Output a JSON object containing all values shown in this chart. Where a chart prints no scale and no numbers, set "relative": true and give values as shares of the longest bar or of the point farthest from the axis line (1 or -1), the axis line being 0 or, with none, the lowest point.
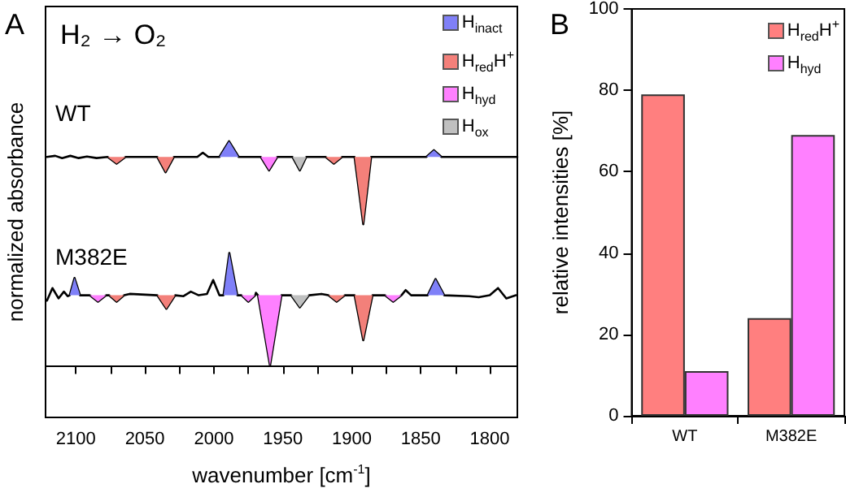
{
  "chart_data": [
    {
      "type": "line",
      "title": "H₂ → O₂",
      "xlabel": "wavenumber [cm$^{-1}$]",
      "ylabel": "normalized absorbance",
      "annotations": [
        "A"
      ],
      "relative": true,
      "tick_labels": "x",
      "legend": "top right",
      "marker": "none",
      "xlim": [
        2122,
        1780
      ],
      "xticks": [
        2100,
        {
          "value": 2075,
          "label": null
        },
        2050,
        {
          "value": 2025,
          "label": null
        },
        2000,
        {
          "value": 1975,
          "label": null
        },
        1950,
        {
          "value": 1925,
          "label": null
        },
        1900,
        {
          "value": 1875,
          "label": null
        },
        1850,
        {
          "value": 1825,
          "label": null
        },
        1800
      ],
      "series": [
        {
          "type": "area",
          "name": "H$_{inact}$",
          "color": "#8080f8",
          "x": [
            1996,
            1989,
            1982,
            1900,
            1846,
            1840.5,
            1835
          ],
          "values": [
            0.93,
            1.0,
            0.93,
            null,
            0.93,
            0.96,
            0.93
          ]
        },
        {
          "type": "area",
          "name": "H$_{red}$H$^{+}$",
          "color": "#f4807a",
          "x": [
            2077,
            2070.5,
            2064,
            2050,
            2041,
            2035,
            2029,
            1950,
            1919,
            1913,
            1907,
            1903,
            1898,
            1891.7,
            1886
          ],
          "values": [
            0.93,
            0.9,
            0.93,
            null,
            0.93,
            0.862,
            0.93,
            null,
            0.93,
            0.9,
            0.93,
            null,
            0.93,
            0.63,
            0.93
          ]
        },
        {
          "type": "area",
          "name": "H$_{hyd}$",
          "color": "#ff80ff",
          "x": [
            1966,
            1960,
            1954
          ],
          "values": [
            0.93,
            0.87,
            0.93
          ]
        },
        {
          "type": "area",
          "name": "H$_{ox}$",
          "color": "#c0c0c0",
          "x": [
            1943,
            1937.7,
            1933
          ],
          "values": [
            0.93,
            0.87,
            0.93
          ]
        },
        {
          "type": "area",
          "color": "#7f80f8",
          "x": [
            2104.5,
            2101,
            2097,
            2050,
            1993,
            1988.8,
            1983,
            1900,
            1845,
            1839.3,
            1833
          ],
          "values": [
            0.314,
            0.391,
            0.314,
            null,
            0.314,
            0.502,
            0.314,
            null,
            0.314,
            0.386,
            0.314
          ]
        },
        {
          "type": "area",
          "color": "#f3807a",
          "x": [
            2076,
            2070.5,
            2065,
            2050,
            2041,
            2034.4,
            2028,
            1950,
            1917,
            1911,
            1905,
            1903,
            1898,
            1891.7,
            1885
          ],
          "values": [
            0.314,
            0.285,
            0.314,
            null,
            0.314,
            0.254,
            0.314,
            null,
            0.314,
            0.285,
            0.314,
            null,
            0.314,
            0.114,
            0.314
          ]
        },
        {
          "type": "area",
          "color": "#fe80ff",
          "x": [
            2090,
            2084,
            2078,
            2030,
            1980,
            1975,
            1970,
            1969.5,
            1968,
            1959.3,
            1951,
            1900,
            1876,
            1870,
            1864
          ],
          "values": [
            0.314,
            0.285,
            0.314,
            null,
            0.314,
            0.285,
            0.314,
            null,
            0.314,
            0.0,
            0.314,
            null,
            0.314,
            0.285,
            0.314
          ]
        },
        {
          "type": "area",
          "color": "#bfc0c0",
          "x": [
            1944,
            1937.7,
            1931
          ],
          "values": [
            0.314,
            0.26,
            0.314
          ]
        },
        {
          "name": "WT",
          "color": "#000000",
          "x": [
            2121,
            2115,
            2110,
            2104,
            2098,
            2092,
            2085,
            2077,
            2070.5,
            2064,
            2041,
            2035,
            2029,
            2012,
            2008,
            2004,
            1996,
            1989,
            1982,
            1966,
            1960,
            1954,
            1943,
            1937.7,
            1933,
            1919,
            1913,
            1907,
            1898,
            1891.7,
            1886,
            1846,
            1840.5,
            1835,
            1780
          ],
          "values": [
            0.93,
            0.935,
            0.925,
            0.935,
            0.925,
            0.932,
            0.925,
            0.93,
            0.9,
            0.93,
            0.93,
            0.862,
            0.93,
            0.93,
            0.949,
            0.93,
            0.93,
            1.0,
            0.93,
            0.93,
            0.87,
            0.93,
            0.93,
            0.87,
            0.93,
            0.93,
            0.9,
            0.93,
            0.93,
            0.63,
            0.93,
            0.93,
            0.96,
            0.93,
            0.93
          ]
        },
        {
          "name": "M382E",
          "color": "#000000",
          "x": [
            2121,
            2117,
            2112.6,
            2108.7,
            2106,
            2104.5,
            2101,
            2097,
            2090,
            2084,
            2078,
            2076,
            2070.5,
            2065,
            2061,
            2041,
            2034.4,
            2028,
            2022,
            2016.7,
            2011,
            2005,
            2000.5,
            1996,
            1993,
            1988.8,
            1983,
            1980,
            1975,
            1970,
            1969.5,
            1968,
            1959.3,
            1951,
            1944,
            1937.7,
            1931,
            1922,
            1917,
            1911,
            1905,
            1898,
            1891.7,
            1885,
            1876,
            1870,
            1864,
            1861,
            1857,
            1845,
            1839.3,
            1833,
            1815,
            1808,
            1800,
            1794,
            1788,
            1781
          ],
          "values": [
            0.29,
            0.346,
            0.3,
            0.33,
            0.31,
            0.314,
            0.391,
            0.314,
            0.314,
            0.285,
            0.314,
            0.314,
            0.285,
            0.314,
            0.32,
            0.314,
            0.254,
            0.314,
            0.31,
            0.33,
            0.314,
            0.32,
            0.382,
            0.314,
            0.314,
            0.502,
            0.314,
            0.314,
            0.285,
            0.314,
            0.325,
            0.314,
            0.0,
            0.314,
            0.314,
            0.26,
            0.314,
            0.32,
            0.314,
            0.285,
            0.314,
            0.314,
            0.114,
            0.314,
            0.314,
            0.285,
            0.314,
            0.337,
            0.314,
            0.314,
            0.386,
            0.314,
            0.31,
            0.305,
            0.314,
            0.346,
            0.3,
            0.314
          ]
        }
      ]
    },
    {
      "type": "bar",
      "ylabel": "relative intensities [%]",
      "annotations": [
        "B"
      ],
      "legend": "top right",
      "categories": [
        "WT",
        "M382E"
      ],
      "ylim": [
        0,
        100
      ],
      "yticks": [
        0,
        20,
        40,
        60,
        80,
        100
      ],
      "series": [
        {
          "name": "H$_{red}$H$^{+}$",
          "color": "#ff7f7f",
          "values": [
            79,
            24
          ]
        },
        {
          "name": "H$_{hyd}$",
          "color": "#ff80ff",
          "values": [
            11,
            69
          ]
        }
      ]
    }
  ]
}
